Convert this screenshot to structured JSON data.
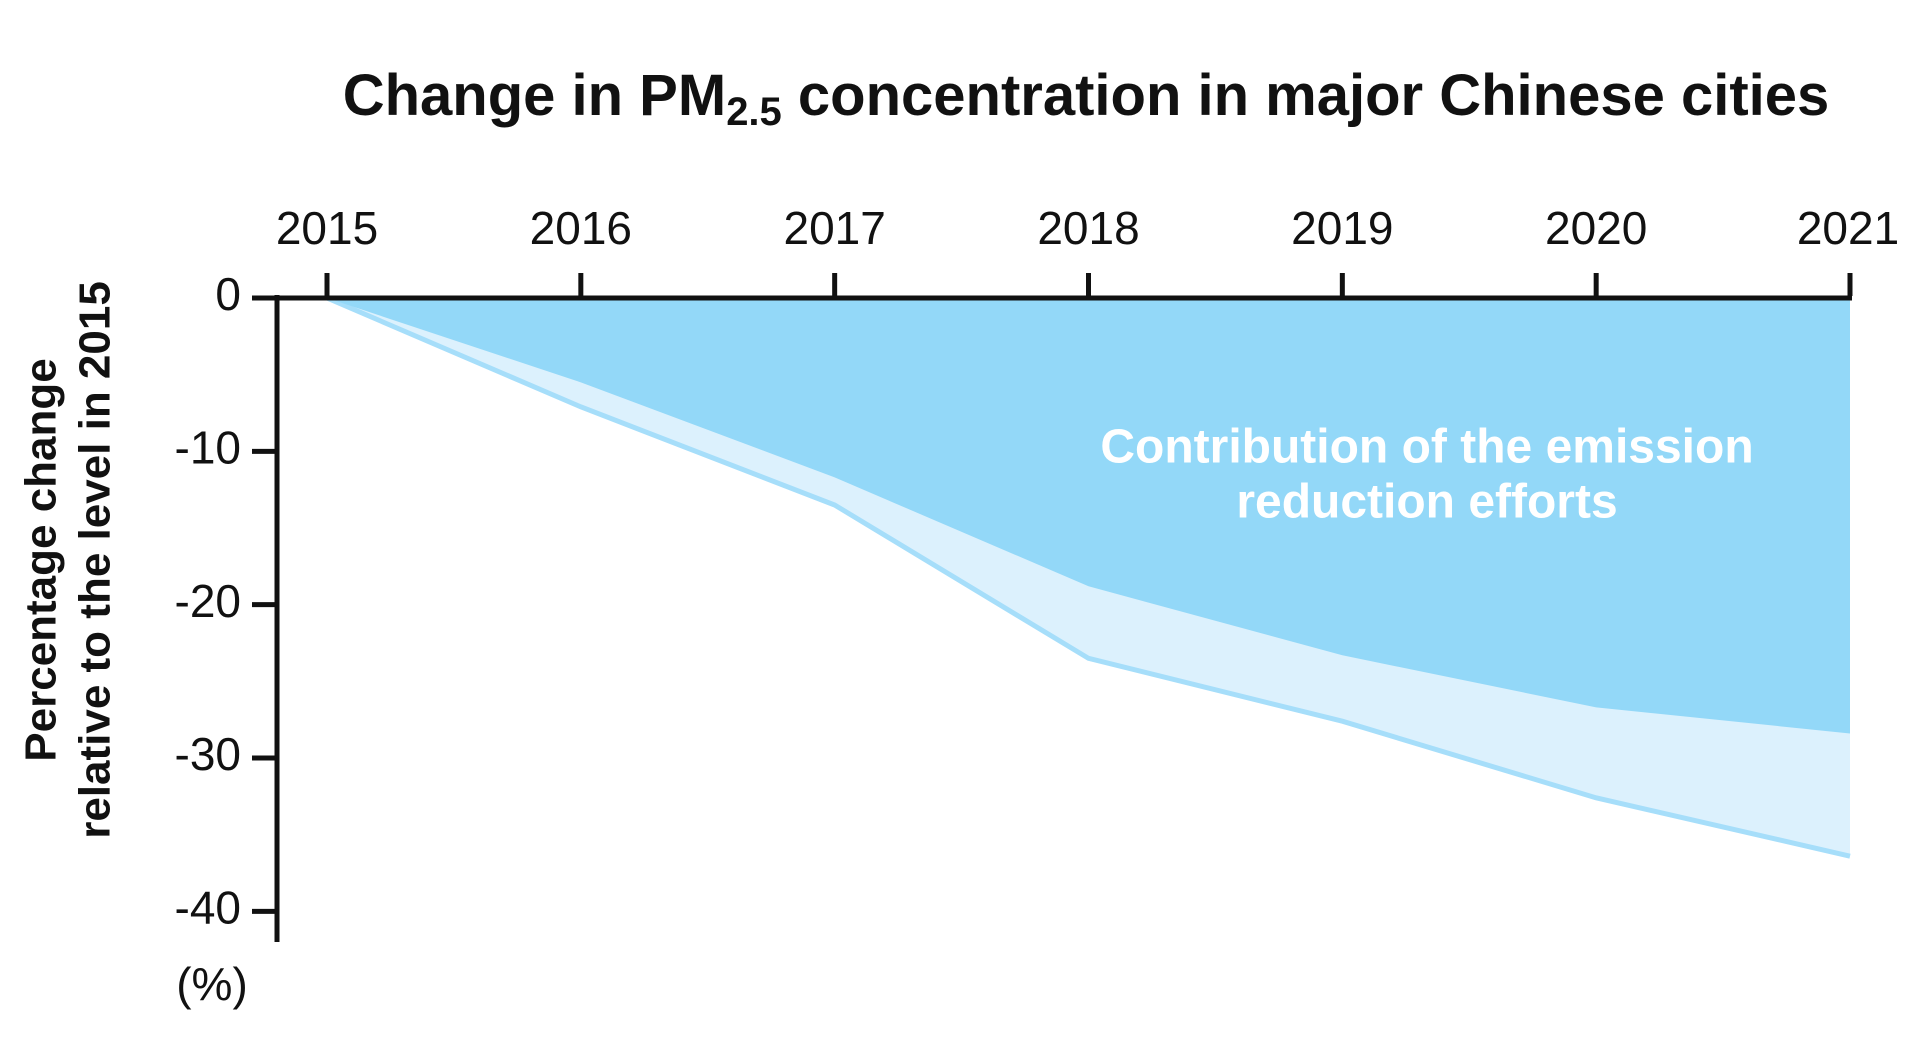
{
  "chart_data": {
    "type": "area",
    "title": [
      "Change in PM",
      "2.5",
      " concentration in major Chinese cities"
    ],
    "y_label": [
      "Percentage change",
      "relative to the level in 2015"
    ],
    "y_unit": "(%)",
    "annotation": [
      "Contribution of the emission",
      "reduction efforts"
    ],
    "x": [
      2015,
      2016,
      2017,
      2018,
      2019,
      2020,
      2021
    ],
    "xlim": [
      2015,
      2021
    ],
    "xticks": [
      2015,
      2016,
      2017,
      2018,
      2019,
      2020,
      2021
    ],
    "ylim": [
      -42,
      0
    ],
    "yticks": [
      0,
      -10,
      -20,
      -30,
      -40
    ],
    "series": [
      {
        "color": "#93d8f8",
        "values": [
          0,
          -5.5,
          -11.7,
          -18.8,
          -23.3,
          -26.7,
          -28.4
        ]
      },
      {
        "color": "#dcf1fd",
        "line_color": "#a6defa",
        "values": [
          0,
          -7.1,
          -13.5,
          -23.5,
          -27.6,
          -32.6,
          -36.4
        ]
      }
    ]
  }
}
